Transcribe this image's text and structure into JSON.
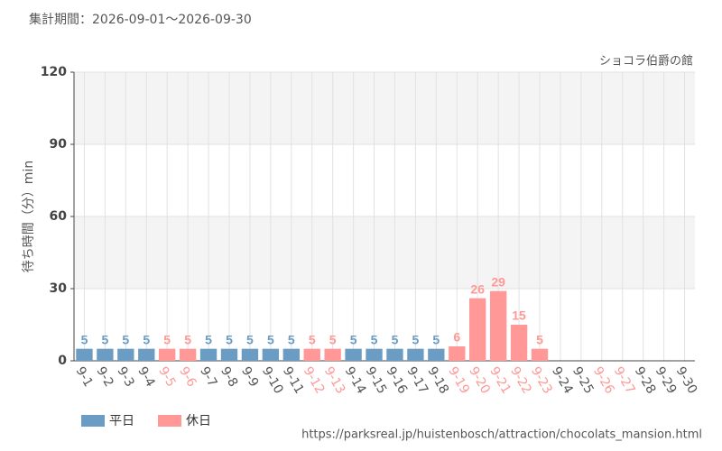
{
  "chart_data": {
    "type": "bar",
    "header": "集計期間：2026-09-01～2026-09-30",
    "title": "ショコラ伯爵の館",
    "y_label": "待ち時間（分）min",
    "source": "https://parksreal.jp/huistenbosch/attraction/chocolats_mansion.html",
    "categories": [
      "9-1",
      "9-2",
      "9-3",
      "9-4",
      "9-5",
      "9-6",
      "9-7",
      "9-8",
      "9-9",
      "9-10",
      "9-11",
      "9-12",
      "9-13",
      "9-14",
      "9-15",
      "9-16",
      "9-17",
      "9-18",
      "9-19",
      "9-20",
      "9-21",
      "9-22",
      "9-23",
      "9-24",
      "9-25",
      "9-26",
      "9-27",
      "9-28",
      "9-29",
      "9-30"
    ],
    "label_colors": [
      "#555555",
      "#555555",
      "#555555",
      "#555555",
      "#ff9896",
      "#ff9896",
      "#555555",
      "#555555",
      "#555555",
      "#555555",
      "#555555",
      "#ff9896",
      "#ff9896",
      "#555555",
      "#555555",
      "#555555",
      "#555555",
      "#555555",
      "#ff9896",
      "#ff9896",
      "#ff9896",
      "#ff9896",
      "#ff9896",
      "#555555",
      "#555555",
      "#ff9896",
      "#ff9896",
      "#555555",
      "#555555",
      "#555555"
    ],
    "series": [
      {
        "name": "平日",
        "color": "#6b9dc4",
        "values": [
          5,
          5,
          5,
          5,
          null,
          null,
          5,
          5,
          5,
          5,
          5,
          null,
          null,
          5,
          5,
          5,
          5,
          5,
          null,
          null,
          null,
          null,
          null,
          null,
          null,
          null,
          null,
          null,
          null,
          null
        ]
      },
      {
        "name": "休日",
        "color": "#ff9896",
        "values": [
          null,
          null,
          null,
          null,
          5,
          5,
          null,
          null,
          null,
          null,
          null,
          5,
          5,
          null,
          null,
          null,
          null,
          null,
          6,
          26,
          29,
          15,
          5,
          null,
          null,
          null,
          null,
          null,
          null,
          null
        ]
      }
    ],
    "ylim": [
      0,
      120
    ],
    "yticks": [
      0,
      30,
      60,
      90,
      120
    ],
    "grid": true
  }
}
